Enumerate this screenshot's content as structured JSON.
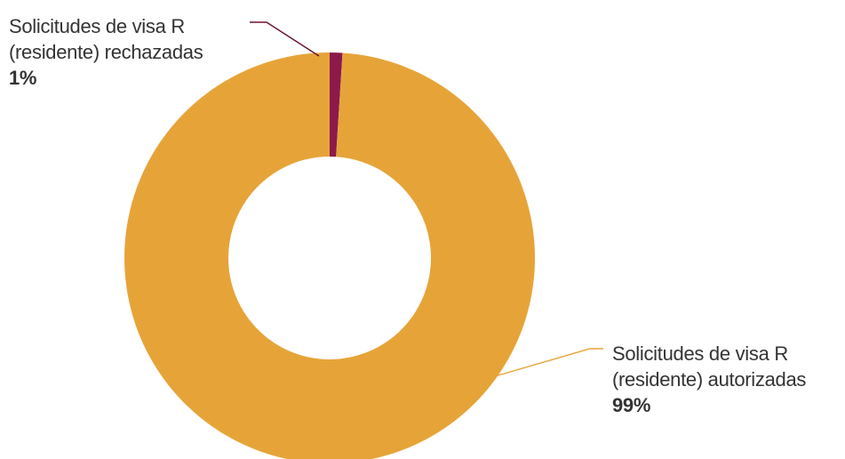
{
  "chart_data": {
    "type": "pie",
    "style": "donut",
    "slices": [
      {
        "label_lines": [
          "Solicitudes de visa R",
          "(residente) autorizadas"
        ],
        "value": 99,
        "value_label": "99%",
        "color": "#e6a438"
      },
      {
        "label_lines": [
          "Solicitudes de visa R",
          "(residente) rechazadas"
        ],
        "value": 1,
        "value_label": "1%",
        "color": "#8b1a4a"
      }
    ],
    "leader_line_colors": {
      "autorizadas": "#e6a438",
      "rechazadas": "#6b1035"
    }
  }
}
